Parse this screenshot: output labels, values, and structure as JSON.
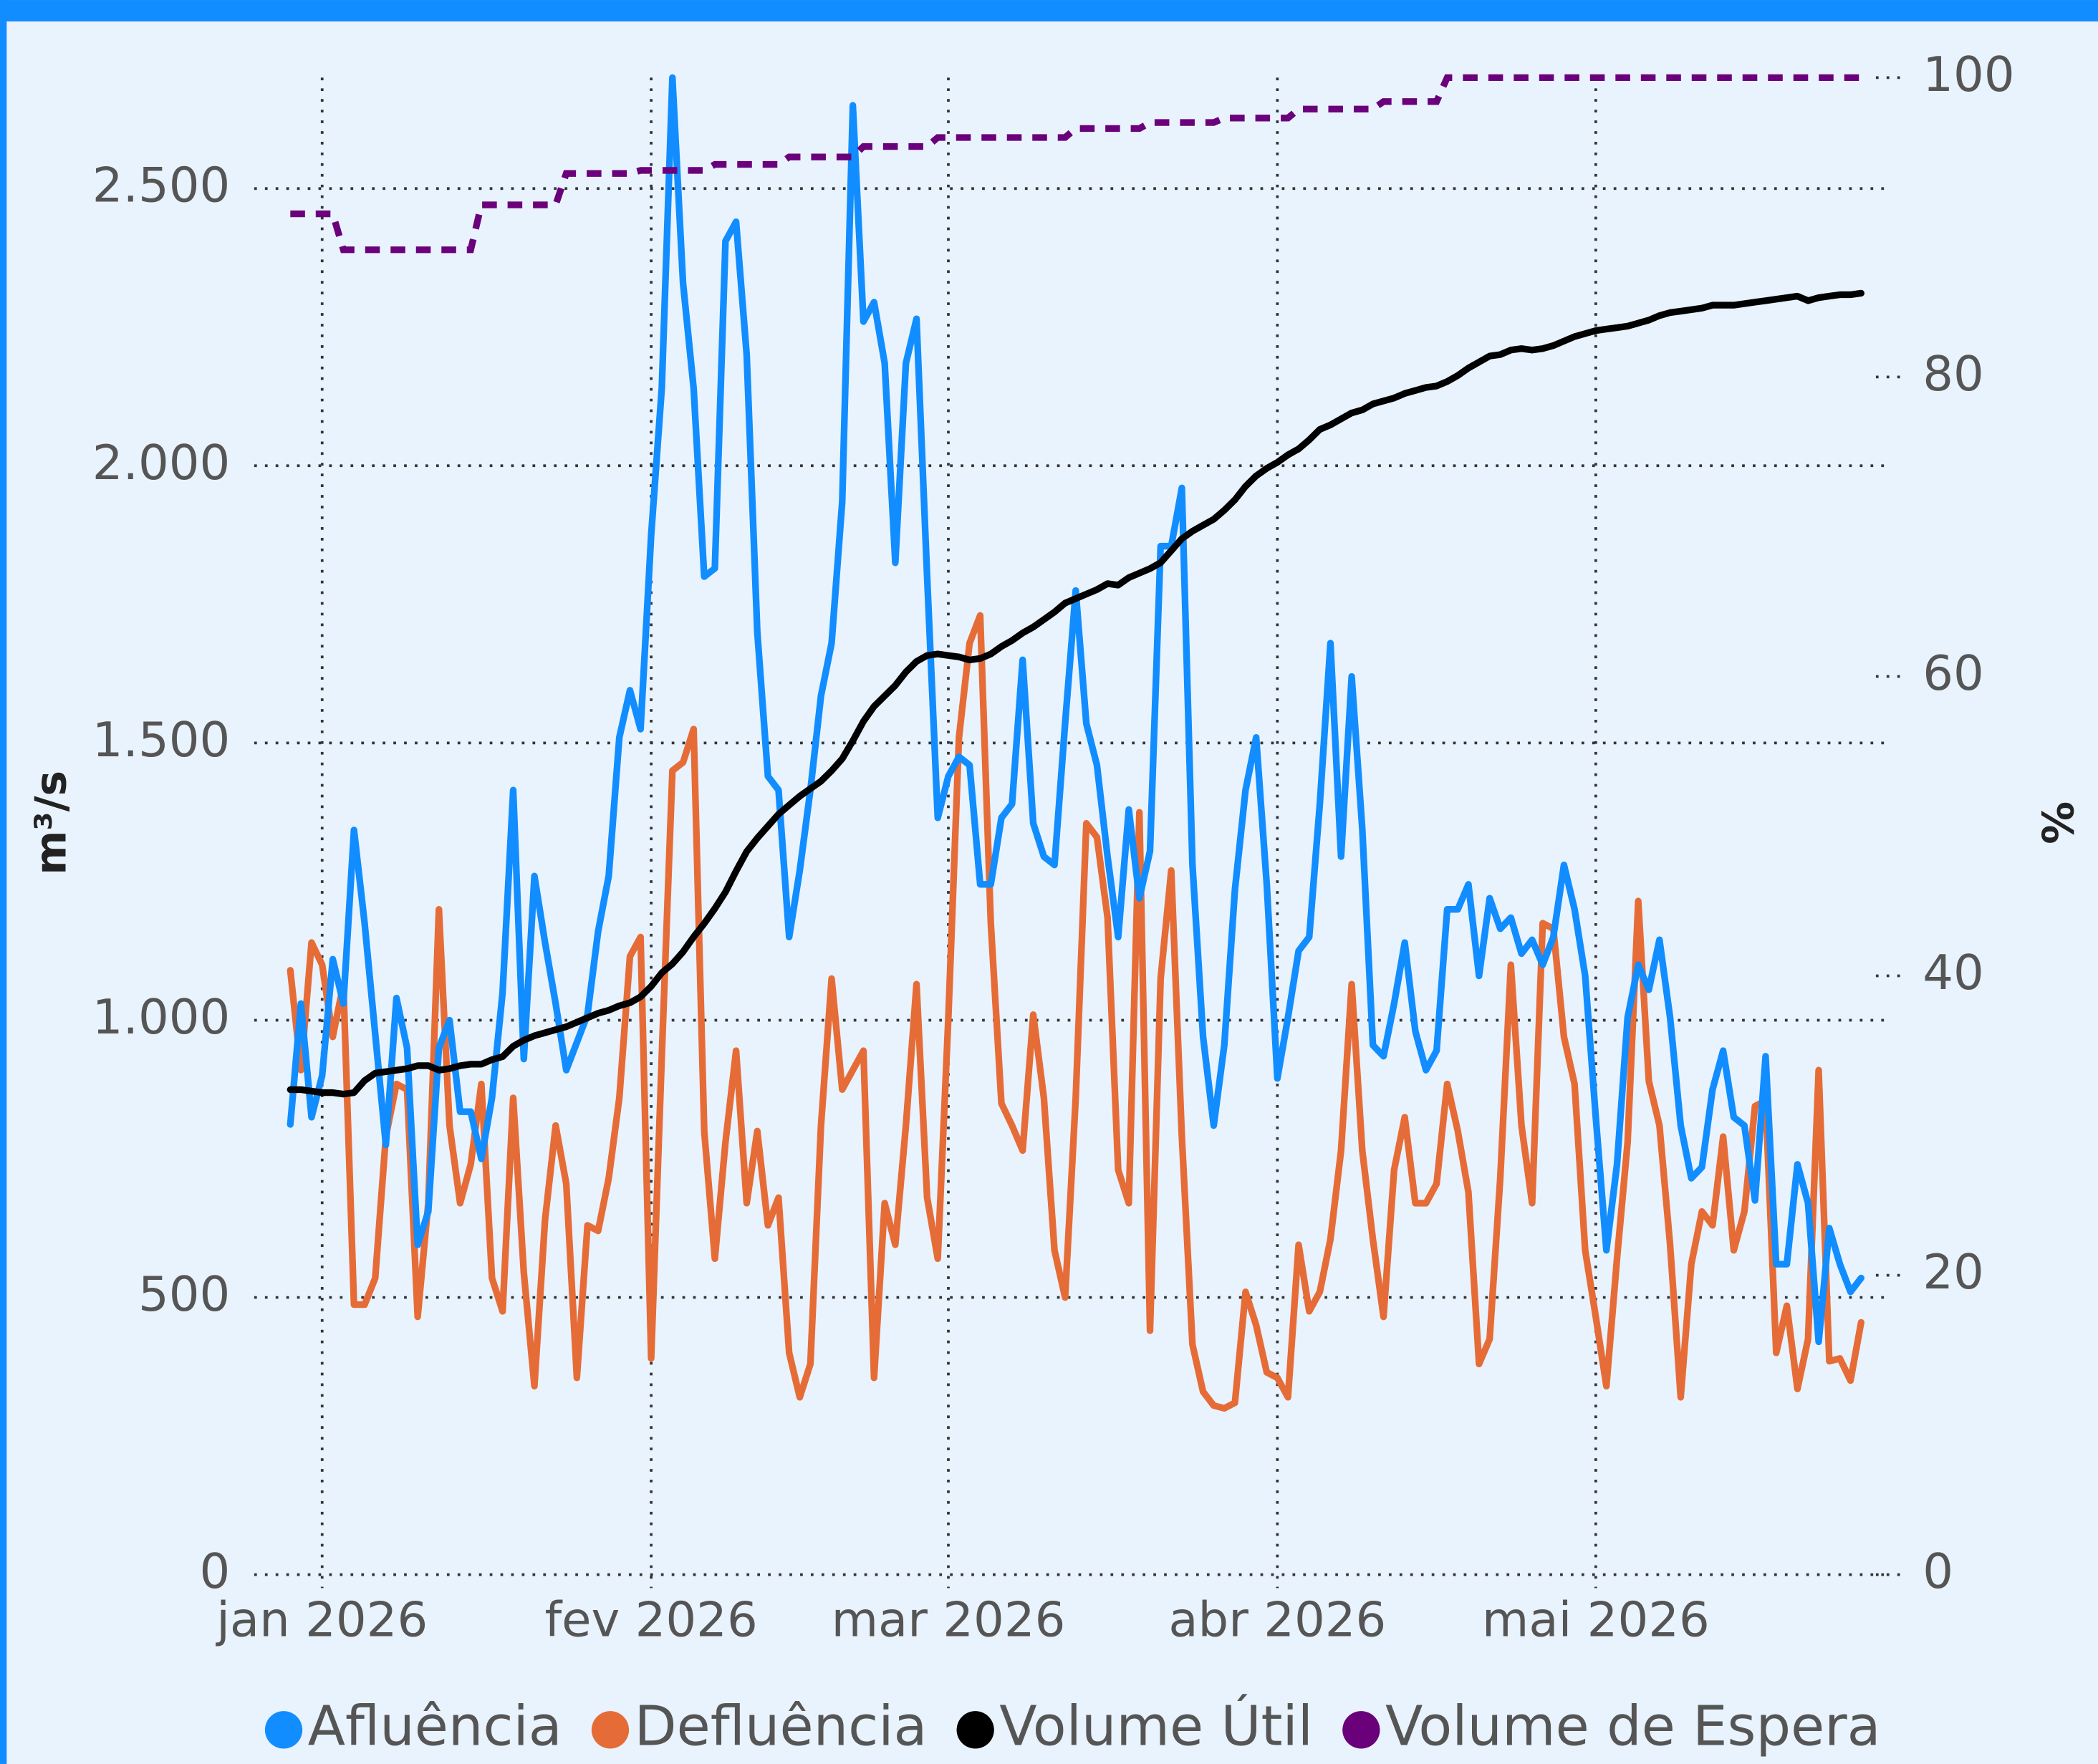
{
  "chart_data": {
    "type": "line",
    "y_label": "m³/s",
    "y2_label": "%",
    "legend": "bottom",
    "grid": true,
    "x": [
      -3,
      -2,
      -1,
      0,
      1,
      2,
      3,
      4,
      5,
      6,
      7,
      8,
      9,
      10,
      11,
      12,
      13,
      14,
      15,
      16,
      17,
      18,
      19,
      20,
      21,
      22,
      23,
      24,
      25,
      26,
      27,
      28,
      29,
      30,
      31,
      32,
      33,
      34,
      35,
      36,
      37,
      38,
      39,
      40,
      41,
      42,
      43,
      44,
      45,
      46,
      47,
      48,
      49,
      50,
      51,
      52,
      53,
      54,
      55,
      56,
      57,
      58,
      59,
      60,
      61,
      62,
      63,
      64,
      65,
      66,
      67,
      68,
      69,
      70,
      71,
      72,
      73,
      74,
      75,
      76,
      77,
      78,
      79,
      80,
      81,
      82,
      83,
      84,
      85,
      86,
      87,
      88,
      89,
      90,
      91,
      92,
      93,
      94,
      95,
      96,
      97,
      98,
      99,
      100,
      101,
      102,
      103,
      104,
      105,
      106,
      107,
      108,
      109,
      110,
      111,
      112,
      113,
      114,
      115,
      116,
      117,
      118,
      119,
      120,
      121,
      122,
      123,
      124,
      125,
      126,
      127,
      128,
      129,
      130,
      131,
      132,
      133,
      134,
      135,
      136,
      137,
      138,
      139,
      140,
      141,
      142,
      143,
      144,
      145
    ],
    "xlim": [
      -6.4,
      147.4
    ],
    "xticks": [
      {
        "value": 0,
        "label": "jan 2026"
      },
      {
        "value": 31,
        "label": "fev 2026"
      },
      {
        "value": 59,
        "label": "mar 2026"
      },
      {
        "value": 90,
        "label": "abr 2026"
      },
      {
        "value": 120,
        "label": "mai 2026"
      }
    ],
    "ylim": [
      0,
      2700
    ],
    "yticks": [
      0,
      500,
      {
        "value": 1000,
        "label": "1.000"
      },
      {
        "value": 1500,
        "label": "1.500"
      },
      {
        "value": 2000,
        "label": "2.000"
      },
      {
        "value": 2500,
        "label": "2.500"
      }
    ],
    "y2lim": [
      0,
      100
    ],
    "y2ticks": [
      0,
      20,
      40,
      60,
      80,
      100
    ],
    "series": [
      {
        "name": "Afluência",
        "color": "#118dff",
        "line_style": "solid",
        "values": [
          812,
          1030,
          825,
          900,
          1110,
          1030,
          1343,
          1175,
          975,
          775,
          1040,
          950,
          595,
          655,
          950,
          1000,
          835,
          835,
          750,
          860,
          1050,
          1415,
          930,
          1260,
          1140,
          1030,
          910,
          960,
          1010,
          1160,
          1260,
          1510,
          1595,
          1525,
          1875,
          2140,
          2700,
          2330,
          2140,
          1800,
          1815,
          2405,
          2440,
          2200,
          1700,
          1440,
          1415,
          1150,
          1270,
          1415,
          1585,
          1680,
          1935,
          2650,
          2260,
          2295,
          2185,
          1825,
          2185,
          2265,
          1800,
          1365,
          1440,
          1475,
          1460,
          1245,
          1245,
          1365,
          1390,
          1650,
          1355,
          1295,
          1280,
          1535,
          1775,
          1535,
          1460,
          1295,
          1150,
          1380,
          1220,
          1305,
          1855,
          1855,
          1960,
          1280,
          970,
          810,
          955,
          1235,
          1415,
          1510,
          1245,
          895,
          1005,
          1125,
          1150,
          1390,
          1680,
          1295,
          1620,
          1345,
          955,
          935,
          1030,
          1140,
          980,
          910,
          945,
          1200,
          1200,
          1245,
          1080,
          1220,
          1165,
          1185,
          1120,
          1145,
          1100,
          1150,
          1280,
          1200,
          1080,
          825,
          585,
          740,
          1005,
          1100,
          1055,
          1145,
          1005,
          810,
          715,
          735,
          875,
          945,
          825,
          810,
          675,
          935,
          560,
          560,
          740,
          670,
          420,
          625,
          560,
          510,
          535
        ]
      },
      {
        "name": "Defluência",
        "color": "#e66c37",
        "line_style": "solid",
        "values": [
          1090,
          910,
          1140,
          1100,
          970,
          1065,
          487,
          487,
          535,
          790,
          885,
          875,
          465,
          670,
          1200,
          810,
          670,
          740,
          885,
          535,
          475,
          860,
          545,
          340,
          640,
          810,
          705,
          355,
          630,
          620,
          715,
          860,
          1115,
          1150,
          390,
          935,
          1450,
          1465,
          1525,
          800,
          570,
          780,
          945,
          670,
          800,
          630,
          680,
          400,
          320,
          380,
          810,
          1075,
          875,
          910,
          945,
          355,
          670,
          595,
          810,
          1065,
          680,
          570,
          1005,
          1510,
          1680,
          1730,
          1175,
          850,
          810,
          765,
          1010,
          860,
          585,
          500,
          860,
          1355,
          1330,
          1185,
          730,
          670,
          1375,
          440,
          1075,
          1270,
          790,
          415,
          330,
          305,
          300,
          310,
          510,
          450,
          365,
          355,
          320,
          595,
          475,
          510,
          605,
          765,
          1065,
          765,
          605,
          465,
          730,
          825,
          670,
          670,
          705,
          885,
          800,
          690,
          380,
          425,
          715,
          1100,
          810,
          670,
          1175,
          1165,
          970,
          885,
          585,
          465,
          340,
          570,
          780,
          1215,
          890,
          810,
          595,
          320,
          560,
          655,
          630,
          790,
          585,
          655,
          845,
          855,
          400,
          485,
          335,
          425,
          910,
          385,
          390,
          350,
          455
        ]
      },
      {
        "name": "Volume Útil",
        "color": "#000000",
        "line_style": "solid",
        "axis": "y2",
        "values": [
          32.4,
          32.4,
          32.3,
          32.2,
          32.2,
          32.1,
          32.2,
          33.0,
          33.5,
          33.6,
          33.7,
          33.8,
          34.0,
          34.0,
          33.7,
          33.8,
          34.0,
          34.1,
          34.1,
          34.4,
          34.6,
          35.3,
          35.7,
          36.0,
          36.2,
          36.4,
          36.6,
          36.9,
          37.2,
          37.5,
          37.7,
          38.0,
          38.2,
          38.6,
          39.3,
          40.2,
          40.8,
          41.6,
          42.6,
          43.5,
          44.5,
          45.6,
          47.0,
          48.3,
          49.2,
          50.0,
          50.8,
          51.4,
          52.0,
          52.5,
          53.0,
          53.7,
          54.5,
          55.7,
          57.0,
          58.0,
          58.7,
          59.4,
          60.3,
          61.0,
          61.4,
          61.5,
          61.4,
          61.3,
          61.1,
          61.2,
          61.5,
          62.0,
          62.4,
          62.9,
          63.3,
          63.8,
          64.3,
          64.9,
          65.2,
          65.5,
          65.8,
          66.2,
          66.1,
          66.6,
          66.9,
          67.2,
          67.6,
          68.4,
          69.2,
          69.7,
          70.1,
          70.5,
          71.1,
          71.8,
          72.7,
          73.4,
          73.9,
          74.3,
          74.8,
          75.2,
          75.8,
          76.5,
          76.8,
          77.2,
          77.6,
          77.8,
          78.2,
          78.4,
          78.6,
          78.9,
          79.1,
          79.3,
          79.4,
          79.7,
          80.1,
          80.6,
          81.0,
          81.4,
          81.5,
          81.8,
          81.9,
          81.8,
          81.9,
          82.1,
          82.4,
          82.7,
          82.9,
          83.1,
          83.2,
          83.3,
          83.4,
          83.6,
          83.8,
          84.1,
          84.3,
          84.4,
          84.5,
          84.6,
          84.8,
          84.8,
          84.8,
          84.9,
          85.0,
          85.1,
          85.2,
          85.3,
          85.4,
          85.1,
          85.3,
          85.4,
          85.5,
          85.5,
          85.6
        ]
      },
      {
        "name": "Volume de Espera",
        "color": "#6b007b",
        "line_style": "dashed",
        "axis": "y2",
        "values": [
          90.9,
          90.9,
          90.9,
          90.9,
          90.9,
          88.5,
          88.5,
          88.5,
          88.5,
          88.5,
          88.5,
          88.5,
          88.5,
          88.5,
          88.5,
          88.5,
          88.5,
          88.5,
          91.5,
          91.5,
          91.5,
          91.5,
          91.5,
          91.5,
          91.5,
          91.5,
          93.6,
          93.6,
          93.6,
          93.6,
          93.6,
          93.6,
          93.6,
          93.8,
          93.8,
          93.8,
          93.8,
          93.8,
          93.8,
          93.8,
          94.2,
          94.2,
          94.2,
          94.2,
          94.2,
          94.2,
          94.2,
          94.7,
          94.7,
          94.7,
          94.7,
          94.7,
          94.7,
          94.7,
          95.4,
          95.4,
          95.4,
          95.4,
          95.4,
          95.4,
          95.4,
          96.0,
          96.0,
          96.0,
          96.0,
          96.0,
          96.0,
          96.0,
          96.0,
          96.0,
          96.0,
          96.0,
          96.0,
          96.0,
          96.6,
          96.6,
          96.6,
          96.6,
          96.6,
          96.6,
          96.6,
          97.0,
          97.0,
          97.0,
          97.0,
          97.0,
          97.0,
          97.0,
          97.3,
          97.3,
          97.3,
          97.3,
          97.3,
          97.3,
          97.3,
          97.9,
          97.9,
          97.9,
          97.9,
          97.9,
          97.9,
          97.9,
          97.9,
          98.4,
          98.4,
          98.4,
          98.4,
          98.4,
          98.4,
          100,
          100,
          100,
          100,
          100,
          100,
          100,
          100,
          100,
          100,
          100,
          100,
          100,
          100,
          100,
          100,
          100,
          100,
          100,
          100,
          100,
          100,
          100,
          100,
          100,
          100,
          100,
          100,
          100,
          100,
          100,
          100,
          100,
          100,
          100,
          100,
          100,
          100,
          100,
          100
        ]
      }
    ]
  }
}
